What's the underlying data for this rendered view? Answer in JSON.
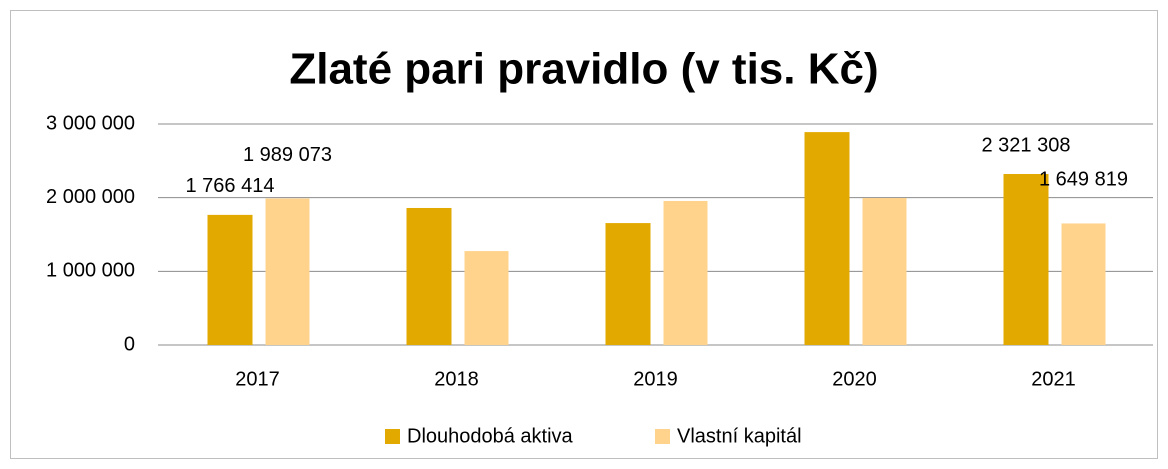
{
  "chart_data": {
    "type": "bar",
    "title": "Zlaté pari pravidlo (v tis. Kč)",
    "categories": [
      "2017",
      "2018",
      "2019",
      "2020",
      "2021"
    ],
    "series": [
      {
        "name": "Dlouhodobá aktiva",
        "color": "#e2a900",
        "values": [
          1766414,
          1860000,
          1655000,
          2890000,
          2321308
        ],
        "value_labels": [
          "1 766 414",
          null,
          null,
          null,
          "2 321 308"
        ]
      },
      {
        "name": "Vlastní kapitál",
        "color": "#ffd38c",
        "values": [
          1989073,
          1275000,
          1955000,
          1995000,
          1649819
        ],
        "value_labels": [
          "1 989 073",
          null,
          null,
          null,
          "1 649 819"
        ]
      }
    ],
    "ylim": [
      0,
      3000000
    ],
    "yticks": [
      0,
      {
        "value": 1000000,
        "label": "1 000 000"
      },
      {
        "value": 2000000,
        "label": "2 000 000"
      },
      {
        "value": 3000000,
        "label": "3 000 000"
      }
    ],
    "grid": true,
    "legend": "bottom"
  }
}
